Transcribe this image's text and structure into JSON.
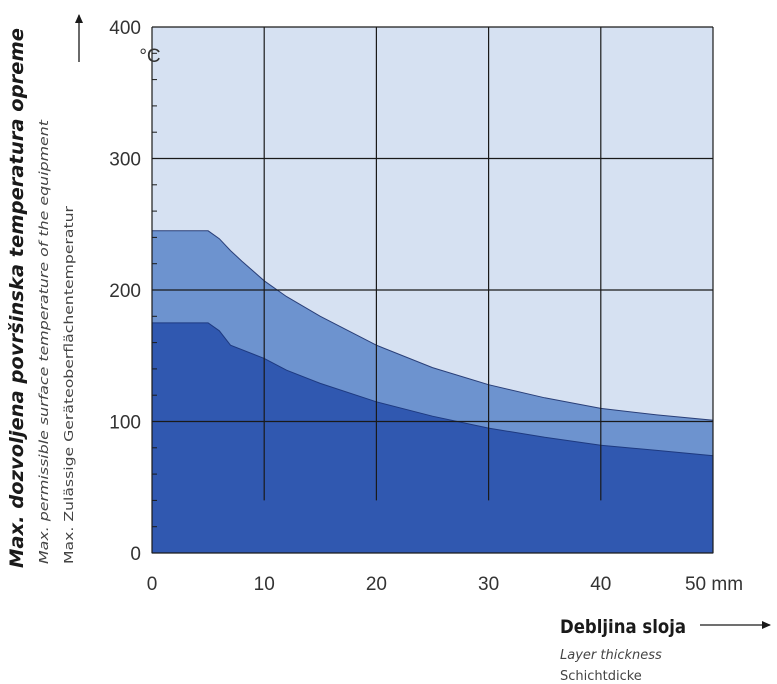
{
  "chart_data": {
    "type": "area",
    "ylabel": "Max. dozvoljena površinska temperatura opreme",
    "ylabel_en": "Max. permissible surface temperature of the equipment",
    "ylabel_de": "Max. Zulässige Geräteoberflächentemperatur",
    "yunit": "°C",
    "xlabel": "Debljina sloja",
    "xlabel_en": "Layer thickness",
    "xlabel_de": "Schichtdicke",
    "xunit": "50 mm",
    "xlim": [
      0,
      50
    ],
    "ylim": [
      0,
      400
    ],
    "x_ticks": [
      "0",
      "10",
      "20",
      "30",
      "40"
    ],
    "y_ticks": [
      "0",
      "100",
      "200",
      "300",
      "400"
    ],
    "grid": true,
    "upper_curve": {
      "x": [
        0,
        5,
        6,
        7,
        8,
        10,
        12,
        15,
        20,
        25,
        30,
        35,
        40,
        45,
        50
      ],
      "y": [
        245,
        245,
        239,
        230,
        222,
        207,
        195,
        180,
        158,
        141,
        128,
        118,
        110,
        105,
        101
      ]
    },
    "lower_curve": {
      "x": [
        0,
        5,
        6,
        7,
        10,
        12,
        15,
        20,
        25,
        30,
        35,
        40,
        45,
        50
      ],
      "y": [
        175,
        175,
        169,
        158,
        148,
        139,
        129,
        115,
        104,
        95,
        88,
        82,
        78,
        74
      ]
    },
    "colors": {
      "background": "#d6e1f2",
      "upper_band": "#6d93cf",
      "lower_band": "#3058b0",
      "grid": "#1a1a1a"
    }
  }
}
